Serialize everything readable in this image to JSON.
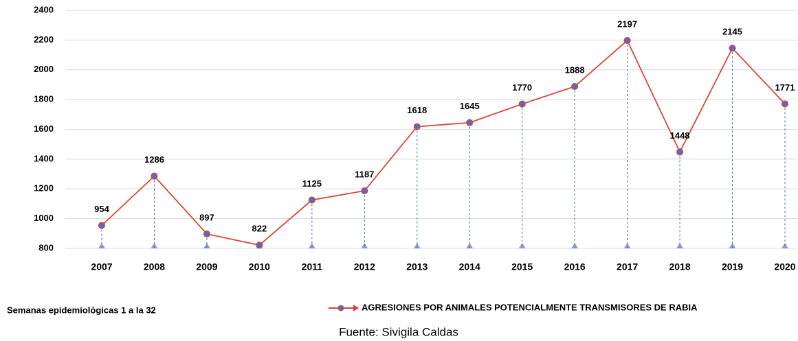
{
  "chart_data": {
    "type": "line",
    "categories": [
      "2007",
      "2008",
      "2009",
      "2010",
      "2011",
      "2012",
      "2013",
      "2014",
      "2015",
      "2016",
      "2017",
      "2018",
      "2019",
      "2020"
    ],
    "series": [
      {
        "name": "AGRESIONES POR ANIMALES POTENCIALMENTE TRANSMISORES DE RABIA",
        "color": "#e0413e",
        "marker_color": "#5a6bb5",
        "values": [
          954,
          1286,
          897,
          822,
          1125,
          1187,
          1618,
          1645,
          1770,
          1888,
          2197,
          1448,
          2145,
          1771
        ]
      }
    ],
    "ylim": [
      800,
      2400
    ],
    "yticks": [
      800,
      1000,
      1200,
      1400,
      1600,
      1800,
      2000,
      2200,
      2400
    ],
    "grid": true,
    "legend": "bottom",
    "note": "Semanas epidemiológicas 1 a la 32",
    "source": "Fuente: Sivigila Caldas"
  }
}
